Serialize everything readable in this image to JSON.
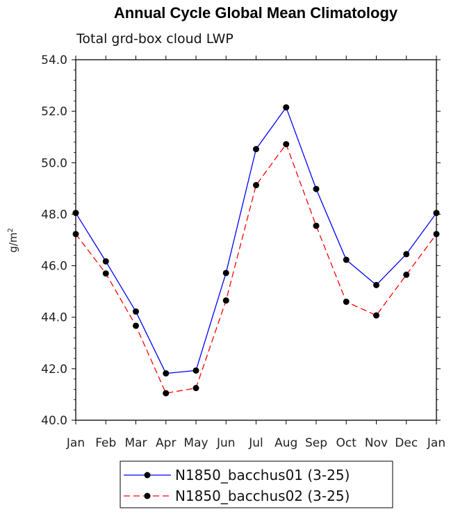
{
  "chart_data": {
    "type": "line",
    "title": "Annual Cycle Global Mean Climatology",
    "subtitle": "Total grd-box cloud LWP",
    "ylabel": "g/m",
    "ylabel_sup": "2",
    "xlabel": "",
    "categories": [
      "Jan",
      "Feb",
      "Mar",
      "Apr",
      "May",
      "Jun",
      "Jul",
      "Aug",
      "Sep",
      "Oct",
      "Nov",
      "Dec",
      "Jan"
    ],
    "ylim": [
      40.0,
      54.0
    ],
    "yticks": [
      40.0,
      42.0,
      44.0,
      46.0,
      48.0,
      50.0,
      52.0,
      54.0
    ],
    "ytick_labels": [
      "40.0",
      "42.0",
      "44.0",
      "46.0",
      "48.0",
      "50.0",
      "52.0",
      "54.0"
    ],
    "grid": false,
    "legend_position": "bottom",
    "series": [
      {
        "name": "N1850_bacchus01 (3-25)",
        "color": "#0000ff",
        "dash": "solid",
        "values": [
          48.05,
          46.17,
          44.22,
          41.82,
          41.93,
          45.72,
          50.53,
          52.15,
          48.98,
          46.23,
          45.25,
          46.45,
          48.05
        ]
      },
      {
        "name": "N1850_bacchus02 (3-25)",
        "color": "#ff0000",
        "dash": "dashed",
        "values": [
          47.23,
          45.7,
          43.67,
          41.05,
          41.25,
          44.65,
          49.13,
          50.72,
          47.55,
          44.6,
          44.07,
          45.65,
          47.23
        ]
      }
    ]
  }
}
